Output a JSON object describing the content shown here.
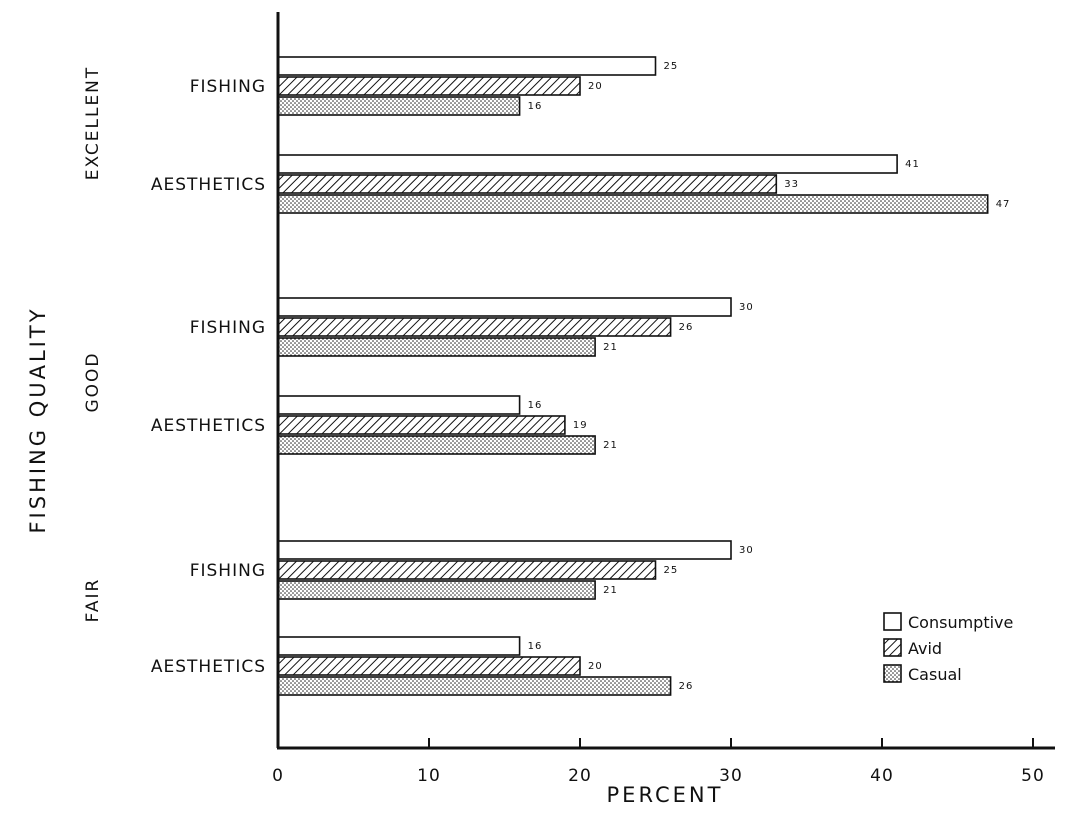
{
  "chart_data": {
    "type": "bar",
    "orientation": "horizontal",
    "title": "",
    "xlabel": "PERCENT",
    "ylabel": "FISHING QUALITY",
    "xlim": [
      0,
      50
    ],
    "xticks": [
      0,
      10,
      20,
      30,
      40,
      50
    ],
    "xtick_labels": [
      "0",
      "10",
      "20",
      "30",
      "40",
      "50"
    ],
    "grid": false,
    "legend_position": "bottom-right",
    "series": [
      {
        "name": "Consumptive",
        "pattern": "none",
        "color": "#ffffff"
      },
      {
        "name": "Avid",
        "pattern": "diagonal-hatch",
        "color": "#ffffff"
      },
      {
        "name": "Casual",
        "pattern": "dots",
        "color": "#ffffff"
      }
    ],
    "groups": [
      {
        "label": "EXCELLENT",
        "categories": [
          {
            "label": "FISHING",
            "values": [
              25,
              20,
              16
            ],
            "value_labels": [
              "25",
              "20",
              "16"
            ]
          },
          {
            "label": "AESTHETICS",
            "values": [
              41,
              33,
              47
            ],
            "value_labels": [
              "41",
              "33",
              "47"
            ]
          }
        ]
      },
      {
        "label": "GOOD",
        "categories": [
          {
            "label": "FISHING",
            "values": [
              30,
              26,
              21
            ],
            "value_labels": [
              "30",
              "26",
              "21"
            ]
          },
          {
            "label": "AESTHETICS",
            "values": [
              16,
              19,
              21
            ],
            "value_labels": [
              "16",
              "19",
              "21"
            ]
          }
        ]
      },
      {
        "label": "FAIR",
        "categories": [
          {
            "label": "FISHING",
            "values": [
              30,
              25,
              21
            ],
            "value_labels": [
              "30",
              "25",
              "21"
            ]
          },
          {
            "label": "AESTHETICS",
            "values": [
              16,
              20,
              26
            ],
            "value_labels": [
              "16",
              "20",
              "26"
            ]
          }
        ]
      }
    ]
  }
}
